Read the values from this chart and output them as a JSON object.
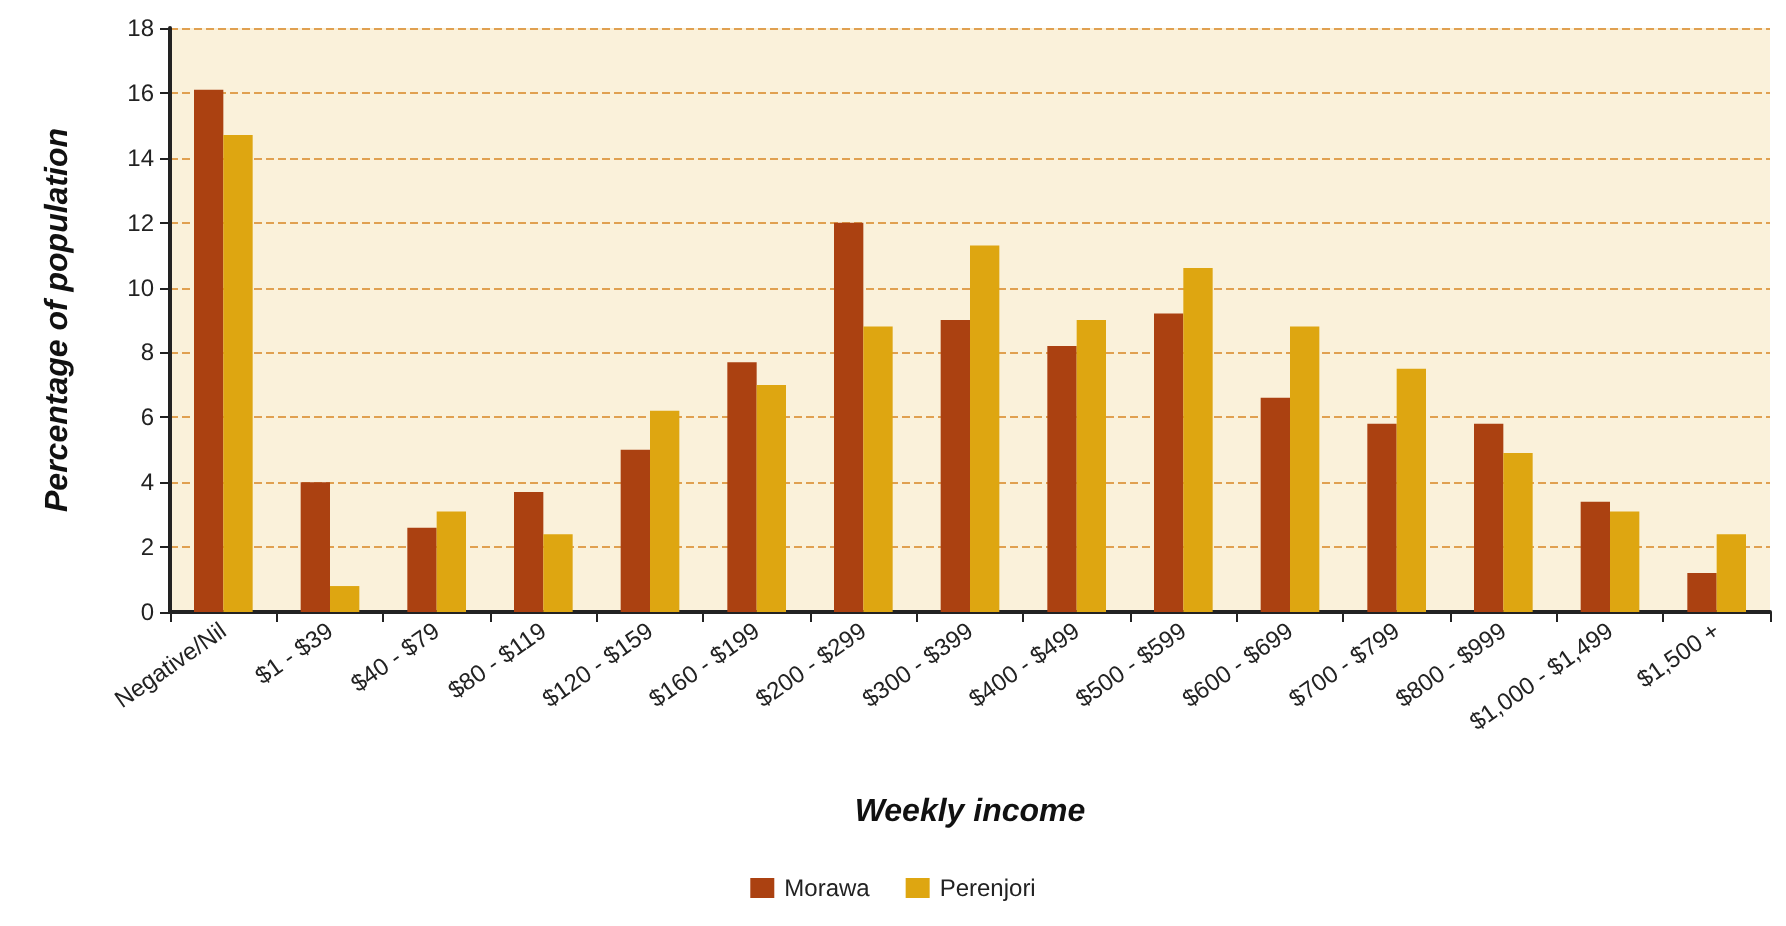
{
  "chart_data": {
    "type": "bar",
    "xlabel": "Weekly income",
    "ylabel": "Percentage of population",
    "categories": [
      "Negative/Nil",
      "$1 - $39",
      "$40 - $79",
      "$80 - $119",
      "$120 - $159",
      "$160 - $199",
      "$200 - $299",
      "$300 - $399",
      "$400 - $499",
      "$500 - $599",
      "$600 - $699",
      "$700 - $799",
      "$800 - $999",
      "$1,000 - $1,499",
      "$1,500 +"
    ],
    "series": [
      {
        "name": "Morawa",
        "color": "#ab4111",
        "values": [
          16.1,
          4.0,
          2.6,
          3.7,
          5.0,
          7.7,
          12.0,
          9.0,
          8.2,
          9.2,
          6.6,
          5.8,
          5.8,
          3.4,
          1.2
        ]
      },
      {
        "name": "Perenjori",
        "color": "#dea611",
        "values": [
          14.7,
          0.8,
          3.1,
          2.4,
          6.2,
          7.0,
          8.8,
          11.3,
          9.0,
          10.6,
          8.8,
          7.5,
          4.9,
          3.1,
          2.4
        ]
      }
    ],
    "ylim": [
      0,
      18
    ],
    "yticks": [
      0,
      2,
      4,
      6,
      8,
      10,
      12,
      14,
      16,
      18
    ],
    "grid": "y",
    "legend": "bottom"
  }
}
